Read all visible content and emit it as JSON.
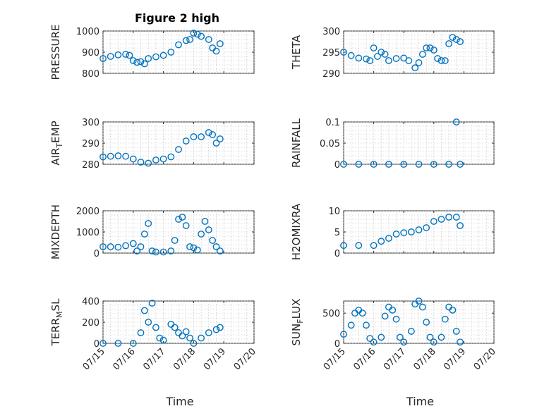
{
  "figure_title": "Figure 2 high",
  "colors": {
    "marker": "#0072BD",
    "axes": "#262626",
    "grid": "#b8b8b8"
  },
  "chart_data": [
    {
      "type": "scatter",
      "title": "Figure 2 high",
      "ylabel": "PRESSURE",
      "xlim": [
        "07/15",
        "07/20"
      ],
      "ylim": [
        800,
        1000
      ],
      "yticks": [
        800,
        900,
        1000
      ],
      "ytick_labels": [
        "800",
        "900",
        "1000"
      ],
      "x": [
        "07/15 00:00",
        "07/15 06:00",
        "07/15 12:00",
        "07/15 18:00",
        "07/15 21:00",
        "07/16 00:00",
        "07/16 03:00",
        "07/16 06:00",
        "07/16 09:00",
        "07/16 12:00",
        "07/16 18:00",
        "07/17 00:00",
        "07/17 06:00",
        "07/17 12:00",
        "07/17 18:00",
        "07/17 21:00",
        "07/18 00:00",
        "07/18 03:00",
        "07/18 06:00",
        "07/18 12:00",
        "07/18 15:00",
        "07/18 18:00",
        "07/18 21:00"
      ],
      "y": [
        870,
        880,
        887,
        890,
        885,
        860,
        852,
        855,
        845,
        870,
        878,
        885,
        900,
        935,
        955,
        960,
        990,
        985,
        975,
        960,
        920,
        905,
        940
      ]
    },
    {
      "type": "scatter",
      "ylabel": "THETA",
      "xlim": [
        "07/15",
        "07/20"
      ],
      "ylim": [
        290,
        300
      ],
      "yticks": [
        290,
        295,
        300
      ],
      "ytick_labels": [
        "290",
        "295",
        "300"
      ],
      "x": [
        "07/15 00:00",
        "07/15 06:00",
        "07/15 12:00",
        "07/15 18:00",
        "07/15 21:00",
        "07/16 00:00",
        "07/16 03:00",
        "07/16 06:00",
        "07/16 09:00",
        "07/16 12:00",
        "07/16 18:00",
        "07/17 00:00",
        "07/17 04:00",
        "07/17 09:00",
        "07/17 12:00",
        "07/17 15:00",
        "07/17 18:00",
        "07/17 21:00",
        "07/18 00:00",
        "07/18 03:00",
        "07/18 06:00",
        "07/18 09:00",
        "07/18 12:00",
        "07/18 15:00",
        "07/18 18:00",
        "07/18 21:00"
      ],
      "y": [
        295,
        294.2,
        293.6,
        293.4,
        293.0,
        296.0,
        294.0,
        295.0,
        294.5,
        293.0,
        293.5,
        293.6,
        293.0,
        291.3,
        292.5,
        294.5,
        296.0,
        296.0,
        295.5,
        293.5,
        293.0,
        293.0,
        297.0,
        298.5,
        298.0,
        297.5
      ]
    },
    {
      "type": "scatter",
      "ylabel": "AIR_TEMP",
      "xlim": [
        "07/15",
        "07/20"
      ],
      "ylim": [
        280,
        300
      ],
      "yticks": [
        280,
        290,
        300
      ],
      "ytick_labels": [
        "280",
        "290",
        "300"
      ],
      "x": [
        "07/15 00:00",
        "07/15 06:00",
        "07/15 12:00",
        "07/15 18:00",
        "07/16 00:00",
        "07/16 06:00",
        "07/16 12:00",
        "07/16 18:00",
        "07/17 00:00",
        "07/17 06:00",
        "07/17 12:00",
        "07/17 18:00",
        "07/18 00:00",
        "07/18 06:00",
        "07/18 12:00",
        "07/18 15:00",
        "07/18 18:00",
        "07/18 21:00"
      ],
      "y": [
        283.5,
        283.8,
        284.0,
        283.8,
        282.5,
        281.0,
        280.5,
        282.0,
        282.5,
        283.5,
        287.0,
        291.0,
        293.0,
        293.0,
        295.0,
        294.0,
        290.0,
        292.0
      ]
    },
    {
      "type": "scatter",
      "ylabel": "RAINFALL",
      "xlim": [
        "07/15",
        "07/20"
      ],
      "ylim": [
        0,
        0.1
      ],
      "yticks": [
        0,
        0.05,
        0.1
      ],
      "ytick_labels": [
        "0",
        "0.05",
        "0.1"
      ],
      "x": [
        "07/15 00:00",
        "07/15 12:00",
        "07/16 00:00",
        "07/16 12:00",
        "07/17 00:00",
        "07/17 12:00",
        "07/18 00:00",
        "07/18 12:00",
        "07/18 18:00",
        "07/18 21:00"
      ],
      "y": [
        0,
        0,
        0,
        0,
        0,
        0,
        0,
        0,
        0.1,
        0
      ]
    },
    {
      "type": "scatter",
      "ylabel": "MIXDEPTH",
      "xlim": [
        "07/15",
        "07/20"
      ],
      "ylim": [
        0,
        2000
      ],
      "yticks": [
        0,
        1000,
        2000
      ],
      "ytick_labels": [
        "0",
        "1000",
        "2000"
      ],
      "x": [
        "07/15 00:00",
        "07/15 06:00",
        "07/15 12:00",
        "07/15 18:00",
        "07/16 00:00",
        "07/16 03:00",
        "07/16 06:00",
        "07/16 09:00",
        "07/16 12:00",
        "07/16 15:00",
        "07/16 18:00",
        "07/17 00:00",
        "07/17 06:00",
        "07/17 09:00",
        "07/17 12:00",
        "07/17 15:00",
        "07/17 18:00",
        "07/17 21:00",
        "07/18 00:00",
        "07/18 03:00",
        "07/18 06:00",
        "07/18 09:00",
        "07/18 12:00",
        "07/18 15:00",
        "07/18 18:00",
        "07/18 21:00"
      ],
      "y": [
        300,
        300,
        280,
        350,
        450,
        100,
        300,
        900,
        1400,
        100,
        50,
        50,
        100,
        600,
        1600,
        1700,
        1300,
        300,
        250,
        150,
        900,
        1500,
        1100,
        600,
        300,
        100
      ]
    },
    {
      "type": "scatter",
      "ylabel": "H2OMIXRA",
      "xlim": [
        "07/15",
        "07/20"
      ],
      "ylim": [
        0,
        10
      ],
      "yticks": [
        0,
        5,
        10
      ],
      "ytick_labels": [
        "0",
        "5",
        "10"
      ],
      "x": [
        "07/15 00:00",
        "07/15 12:00",
        "07/16 00:00",
        "07/16 06:00",
        "07/16 12:00",
        "07/16 18:00",
        "07/17 00:00",
        "07/17 06:00",
        "07/17 12:00",
        "07/17 18:00",
        "07/18 00:00",
        "07/18 06:00",
        "07/18 12:00",
        "07/18 18:00",
        "07/18 21:00"
      ],
      "y": [
        1.8,
        1.8,
        1.8,
        2.8,
        3.5,
        4.5,
        4.8,
        5.0,
        5.5,
        6.0,
        7.5,
        8.0,
        8.5,
        8.5,
        6.5
      ]
    },
    {
      "type": "scatter",
      "ylabel": "TERR_MSL",
      "xlim": [
        "07/15",
        "07/20"
      ],
      "ylim": [
        0,
        400
      ],
      "yticks": [
        0,
        200,
        400
      ],
      "ytick_labels": [
        "0",
        "200",
        "400"
      ],
      "x": [
        "07/15 00:00",
        "07/15 12:00",
        "07/16 00:00",
        "07/16 06:00",
        "07/16 09:00",
        "07/16 12:00",
        "07/16 15:00",
        "07/16 18:00",
        "07/16 21:00",
        "07/17 00:00",
        "07/17 06:00",
        "07/17 09:00",
        "07/17 12:00",
        "07/17 15:00",
        "07/17 18:00",
        "07/17 21:00",
        "07/18 00:00",
        "07/18 06:00",
        "07/18 12:00",
        "07/18 18:00",
        "07/18 21:00"
      ],
      "y": [
        0,
        0,
        0,
        100,
        310,
        200,
        380,
        150,
        50,
        30,
        180,
        150,
        100,
        70,
        110,
        50,
        0,
        50,
        100,
        130,
        150
      ]
    },
    {
      "type": "scatter",
      "ylabel": "SUN_FLUX",
      "xlim": [
        "07/15",
        "07/20"
      ],
      "ylim": [
        0,
        700
      ],
      "yticks": [
        0,
        500
      ],
      "ytick_labels": [
        "0",
        "500"
      ],
      "x": [
        "07/15 00:00",
        "07/15 06:00",
        "07/15 09:00",
        "07/15 12:00",
        "07/15 15:00",
        "07/15 18:00",
        "07/15 21:00",
        "07/16 00:00",
        "07/16 06:00",
        "07/16 09:00",
        "07/16 12:00",
        "07/16 15:00",
        "07/16 18:00",
        "07/16 21:00",
        "07/17 00:00",
        "07/17 06:00",
        "07/17 09:00",
        "07/17 12:00",
        "07/17 15:00",
        "07/17 18:00",
        "07/17 21:00",
        "07/18 00:00",
        "07/18 06:00",
        "07/18 09:00",
        "07/18 12:00",
        "07/18 15:00",
        "07/18 18:00",
        "07/18 21:00"
      ],
      "y": [
        150,
        300,
        500,
        550,
        500,
        300,
        80,
        20,
        100,
        450,
        600,
        550,
        400,
        100,
        20,
        200,
        650,
        700,
        600,
        350,
        100,
        20,
        100,
        400,
        600,
        550,
        200,
        20
      ]
    }
  ],
  "xaxis": {
    "ticks": [
      "07/15",
      "07/16",
      "07/17",
      "07/18",
      "07/19",
      "07/20"
    ],
    "label": "Time"
  }
}
